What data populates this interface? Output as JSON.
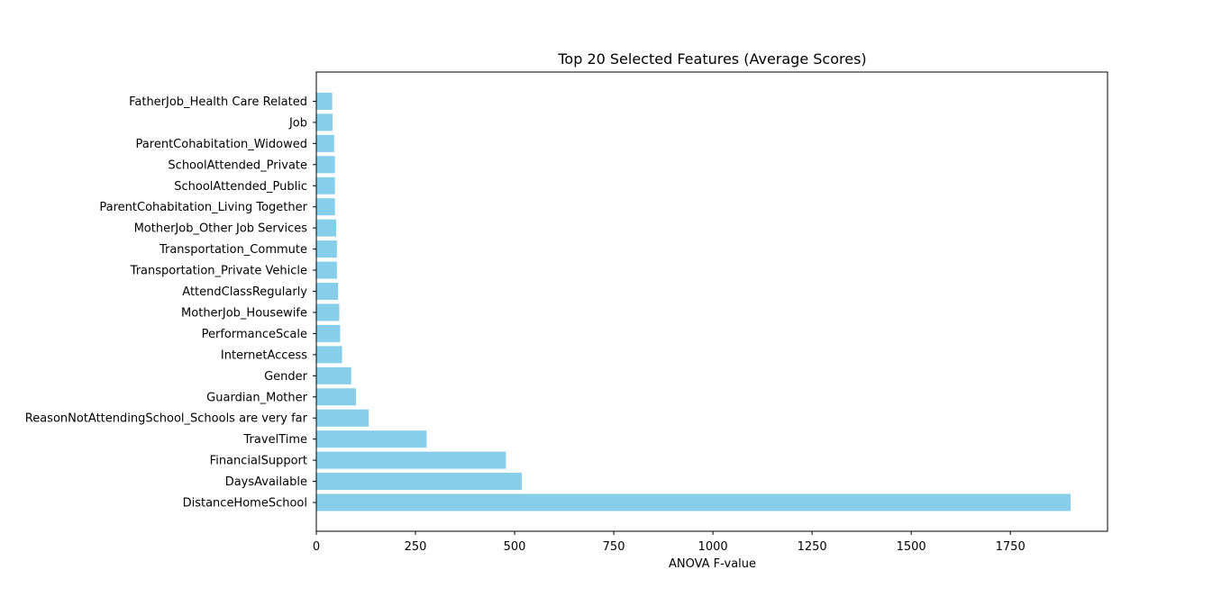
{
  "chart_data": {
    "type": "bar",
    "orientation": "horizontal",
    "title": "Top 20 Selected Features (Average Scores)",
    "xlabel": "ANOVA F-value",
    "ylabel": "",
    "xlim": [
      0,
      1995
    ],
    "xticks": [
      0,
      250,
      500,
      750,
      1000,
      1250,
      1500,
      1750
    ],
    "categories": [
      "DistanceHomeSchool",
      "DaysAvailable",
      "FinancialSupport",
      "TravelTime",
      "ReasonNotAttendingSchool_Schools are very far",
      "Guardian_Mother",
      "Gender",
      "InternetAccess",
      "PerformanceScale",
      "MotherJob_Housewife",
      "AttendClassRegularly",
      "Transportation_Private Vehicle",
      "Transportation_Commute",
      "MotherJob_Other Job Services",
      "ParentCohabitation_Living Together",
      "SchoolAttended_Public",
      "SchoolAttended_Private",
      "ParentCohabitation_Widowed",
      "Job",
      "FatherJob_Health Care Related"
    ],
    "values": [
      1902,
      518,
      478,
      278,
      132,
      100,
      88,
      65,
      60,
      58,
      55,
      52,
      52,
      50,
      47,
      47,
      47,
      45,
      41,
      40
    ],
    "bar_color": "#87ceeb",
    "grid": false,
    "legend": "none"
  }
}
